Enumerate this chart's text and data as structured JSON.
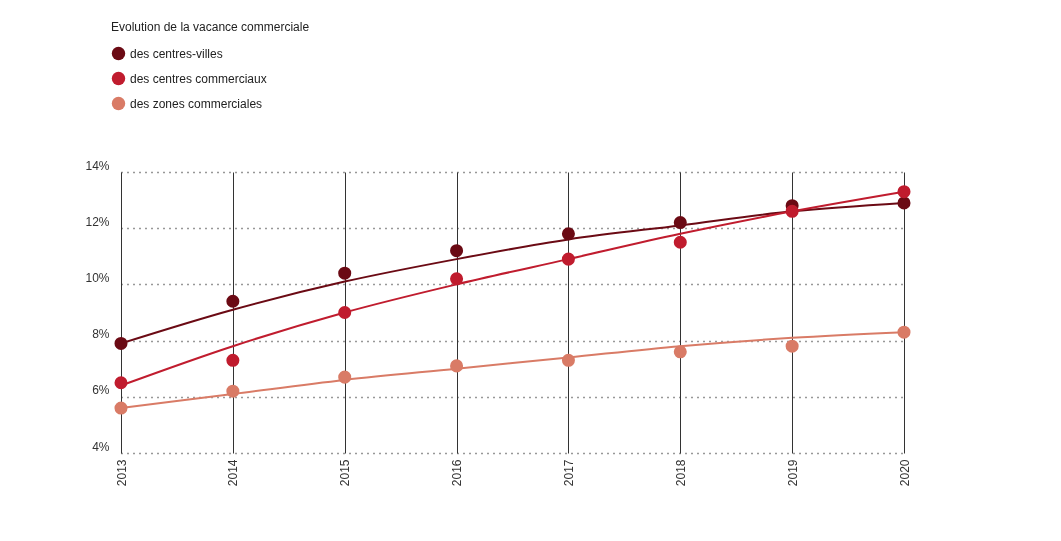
{
  "chart_data": {
    "type": "scatter",
    "legend_title": "Evolution de la vacance commerciale",
    "x": [
      2013,
      2014,
      2015,
      2016,
      2017,
      2018,
      2019,
      2020
    ],
    "xlim": [
      2013,
      2020
    ],
    "xticks": [
      2013,
      2014,
      2015,
      2016,
      2017,
      2018,
      2019,
      2020
    ],
    "ylim": [
      4,
      14
    ],
    "yticks": [
      {
        "value": 4,
        "label": "4%"
      },
      {
        "value": 6,
        "label": "6%"
      },
      {
        "value": 8,
        "label": "8%"
      },
      {
        "value": 10,
        "label": "10%"
      },
      {
        "value": 12,
        "label": "12%"
      },
      {
        "value": 14,
        "label": "14%"
      }
    ],
    "grid": true,
    "legend": "top left",
    "series": [
      {
        "type": "line",
        "color": "#6b0a14",
        "x": [
          2013,
          2014,
          2015,
          2016,
          2017,
          2018,
          2019,
          2020
        ],
        "values": [
          7.9,
          9.1,
          10.1,
          10.9,
          11.6,
          12.1,
          12.6,
          12.9
        ]
      },
      {
        "type": "line",
        "color": "#c01c2e",
        "x": [
          2013,
          2014,
          2015,
          2016,
          2017,
          2018,
          2019,
          2020
        ],
        "values": [
          6.4,
          7.8,
          9.0,
          10.0,
          10.9,
          11.8,
          12.6,
          13.3
        ]
      },
      {
        "type": "line",
        "color": "#d97b66",
        "x": [
          2013,
          2014,
          2015,
          2016,
          2017,
          2018,
          2019,
          2020
        ],
        "values": [
          5.6,
          6.1,
          6.6,
          7.0,
          7.4,
          7.8,
          8.1,
          8.3
        ]
      },
      {
        "name": "des centres-villes",
        "marker": "circle",
        "color": "#6b0a14",
        "values": [
          7.9,
          9.4,
          10.4,
          11.2,
          11.8,
          12.2,
          12.8,
          12.9
        ]
      },
      {
        "name": "des centres commerciaux",
        "marker": "circle",
        "color": "#c01c2e",
        "values": [
          6.5,
          7.3,
          9.0,
          10.2,
          10.9,
          11.5,
          12.6,
          13.3
        ]
      },
      {
        "name": "des zones commerciales",
        "marker": "circle",
        "color": "#d97b66",
        "values": [
          5.6,
          6.2,
          6.7,
          7.1,
          7.3,
          7.6,
          7.8,
          8.3
        ]
      }
    ]
  }
}
